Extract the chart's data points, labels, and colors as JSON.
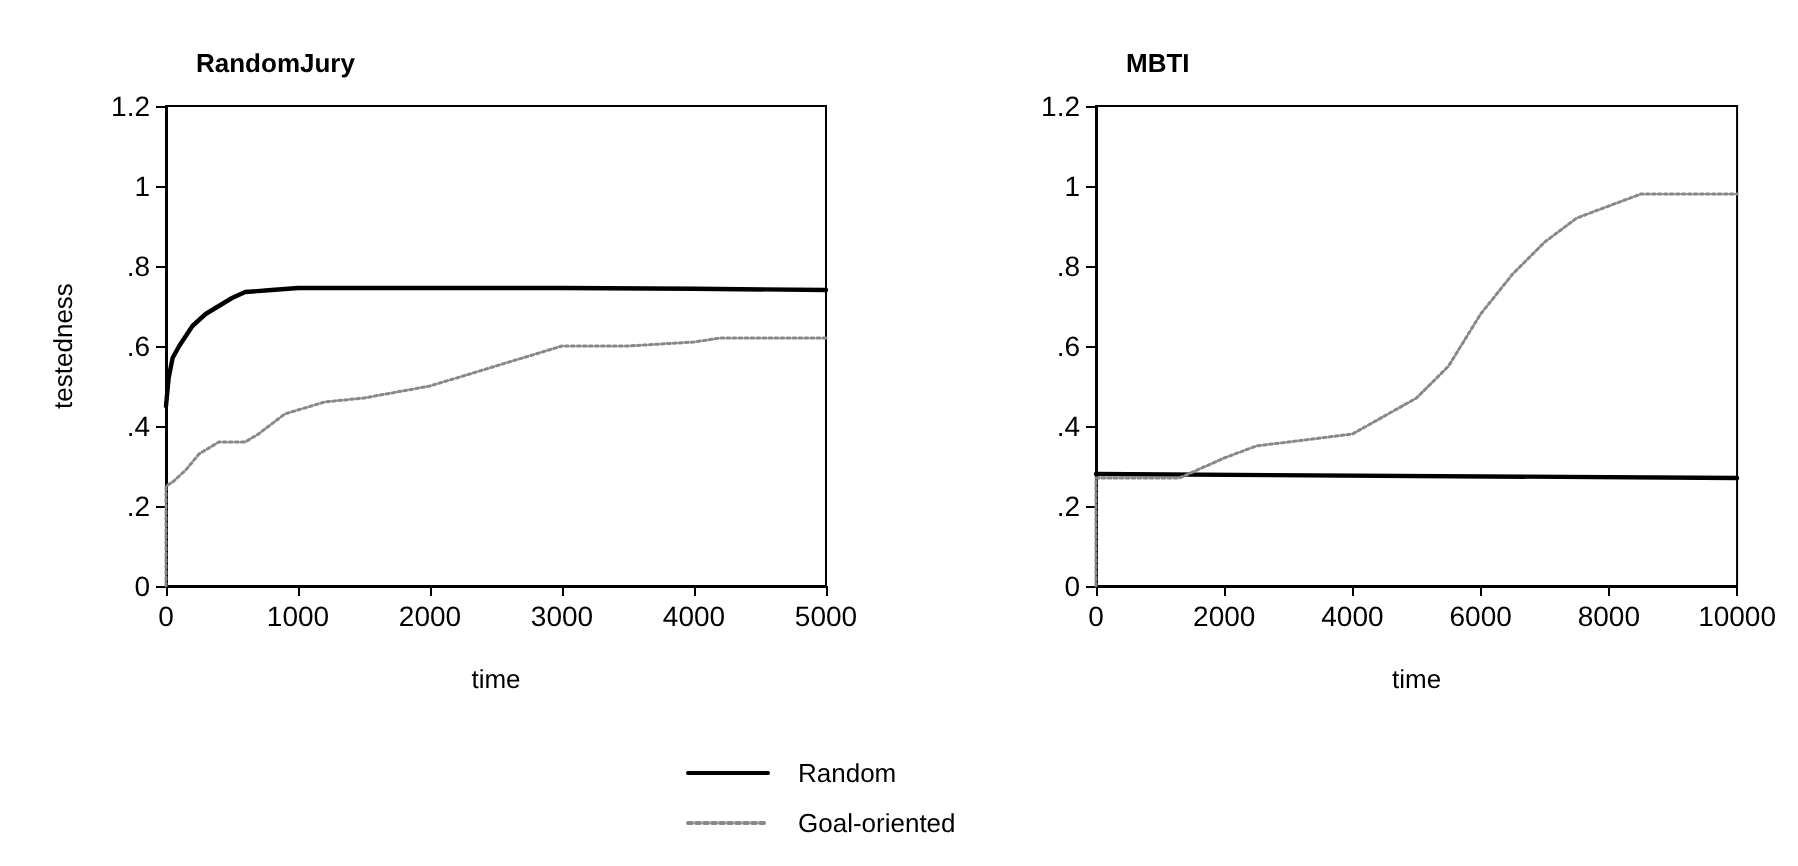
{
  "chart_data": [
    {
      "type": "line",
      "title": "RandomJury",
      "xlabel": "time",
      "ylabel": "testedness",
      "xlim": [
        0,
        5000
      ],
      "xticks": [
        0,
        1000,
        2000,
        3000,
        4000,
        5000
      ],
      "ylim": [
        0,
        1.2
      ],
      "yticks": [
        0,
        {
          "value": 0.2,
          "label": ".2"
        },
        {
          "value": 0.4,
          "label": ".4"
        },
        {
          "value": 0.6,
          "label": ".6"
        },
        {
          "value": 0.8,
          "label": ".8"
        },
        1,
        1.2
      ],
      "grid": false,
      "marker": "none",
      "legend": "bottom",
      "series": [
        {
          "name": "Random",
          "color": "#000000",
          "line_style": "solid",
          "x": [
            0,
            20,
            50,
            100,
            200,
            300,
            400,
            500,
            600,
            800,
            1000,
            2000,
            3000,
            4000,
            5000
          ],
          "values": [
            0.45,
            0.52,
            0.57,
            0.6,
            0.65,
            0.68,
            0.7,
            0.72,
            0.735,
            0.74,
            0.745,
            0.745,
            0.745,
            0.743,
            0.74
          ]
        },
        {
          "name": "Goal-oriented",
          "color": "#888888",
          "line_style": "dotted",
          "x": [
            0,
            0,
            50,
            150,
            250,
            400,
            600,
            700,
            900,
            1200,
            1500,
            2000,
            2500,
            3000,
            3500,
            4000,
            4200,
            5000
          ],
          "values": [
            0,
            0.25,
            0.26,
            0.29,
            0.33,
            0.36,
            0.36,
            0.38,
            0.43,
            0.46,
            0.47,
            0.5,
            0.55,
            0.6,
            0.6,
            0.61,
            0.62,
            0.62
          ]
        }
      ]
    },
    {
      "type": "line",
      "title": "MBTI",
      "xlabel": "time",
      "xlim": [
        0,
        10000
      ],
      "xticks": [
        0,
        2000,
        4000,
        6000,
        8000,
        10000
      ],
      "ylim": [
        0,
        1.2
      ],
      "yticks": [
        0,
        {
          "value": 0.2,
          "label": ".2"
        },
        {
          "value": 0.4,
          "label": ".4"
        },
        {
          "value": 0.6,
          "label": ".6"
        },
        {
          "value": 0.8,
          "label": ".8"
        },
        1,
        1.2
      ],
      "grid": false,
      "marker": "none",
      "legend": "bottom",
      "series": [
        {
          "name": "Random",
          "color": "#000000",
          "line_style": "solid",
          "x": [
            0,
            10000
          ],
          "values": [
            0.28,
            0.27
          ]
        },
        {
          "name": "Goal-oriented",
          "color": "#888888",
          "line_style": "dotted",
          "x": [
            0,
            0,
            1300,
            2000,
            2500,
            3000,
            4000,
            5000,
            5500,
            6000,
            6500,
            7000,
            7500,
            8000,
            8500,
            10000
          ],
          "values": [
            0,
            0.27,
            0.27,
            0.32,
            0.35,
            0.36,
            0.38,
            0.47,
            0.55,
            0.68,
            0.78,
            0.86,
            0.92,
            0.95,
            0.98,
            0.98
          ]
        }
      ]
    }
  ]
}
